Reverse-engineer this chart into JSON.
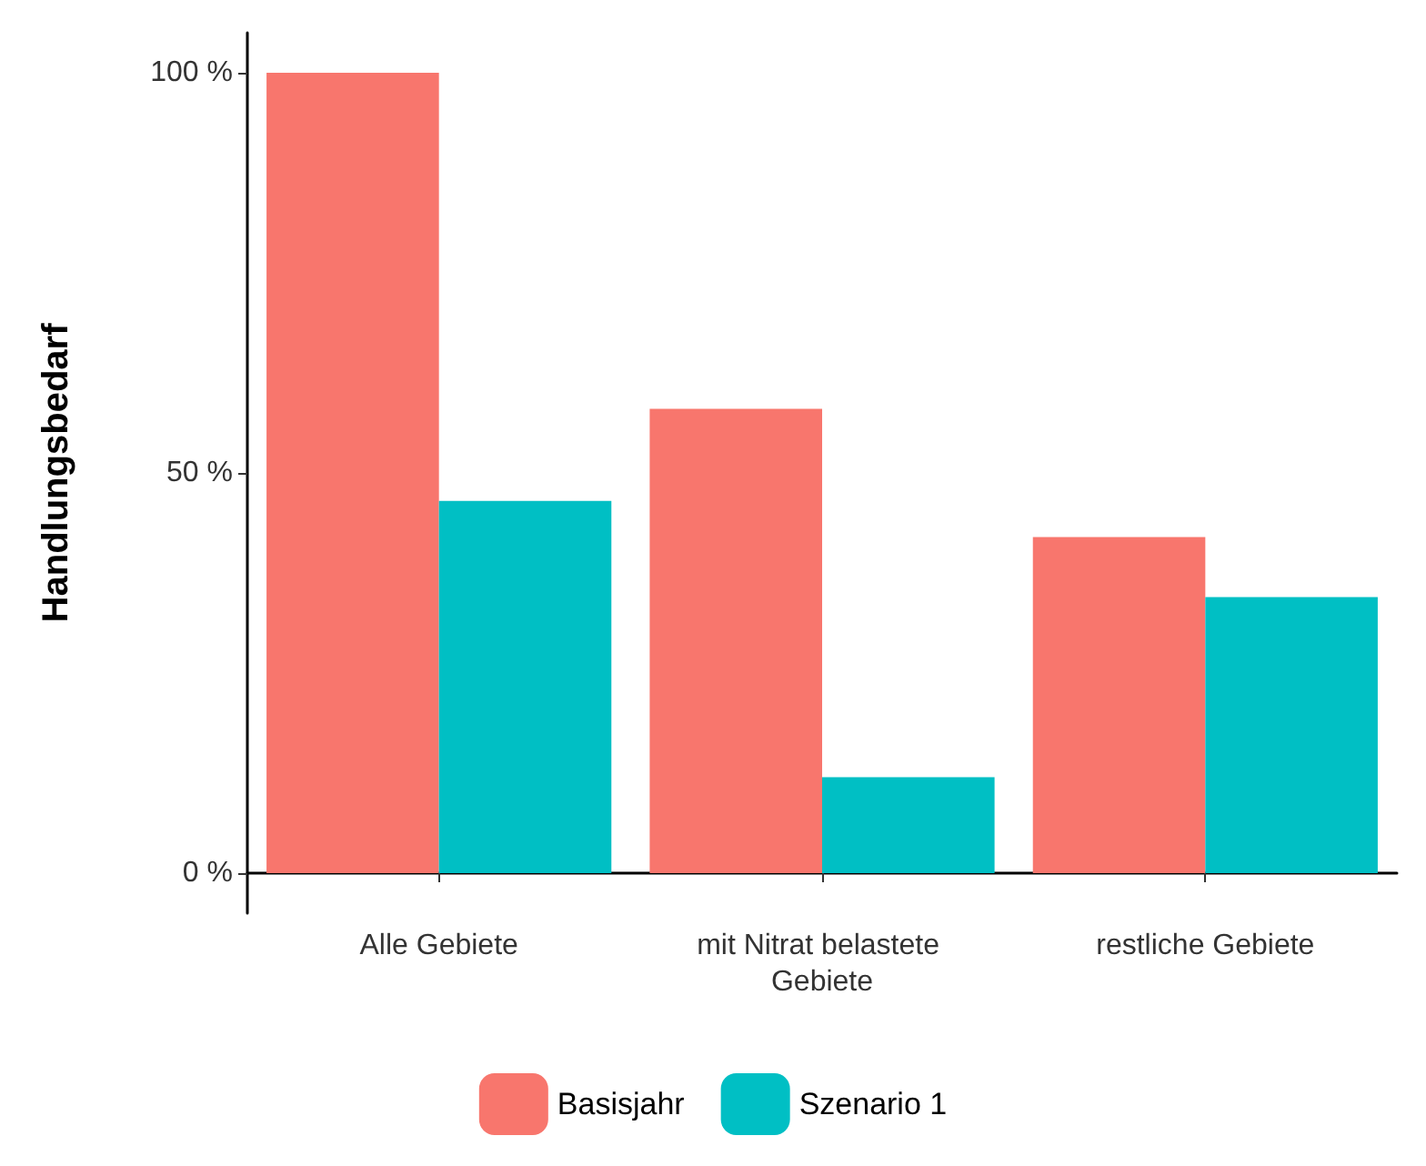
{
  "chart_data": {
    "type": "bar",
    "ylabel": "Handlungsbedarf",
    "categories": [
      "Alle Gebiete",
      "mit Nitrat belastete Gebiete",
      "restliche Gebiete"
    ],
    "series": [
      {
        "name": "Basisjahr",
        "color": "#f8766d",
        "values": [
          100,
          58,
          42
        ]
      },
      {
        "name": "Szenario 1",
        "color": "#00bfc4",
        "values": [
          46.5,
          12,
          34.5
        ]
      }
    ],
    "ylim": [
      -5,
      105
    ],
    "yticks": [
      {
        "value": 0,
        "label": "0 %"
      },
      {
        "value": 50,
        "label": "50 %"
      },
      {
        "value": 100,
        "label": "100 %"
      }
    ],
    "grid": false,
    "legend": "bottom"
  }
}
